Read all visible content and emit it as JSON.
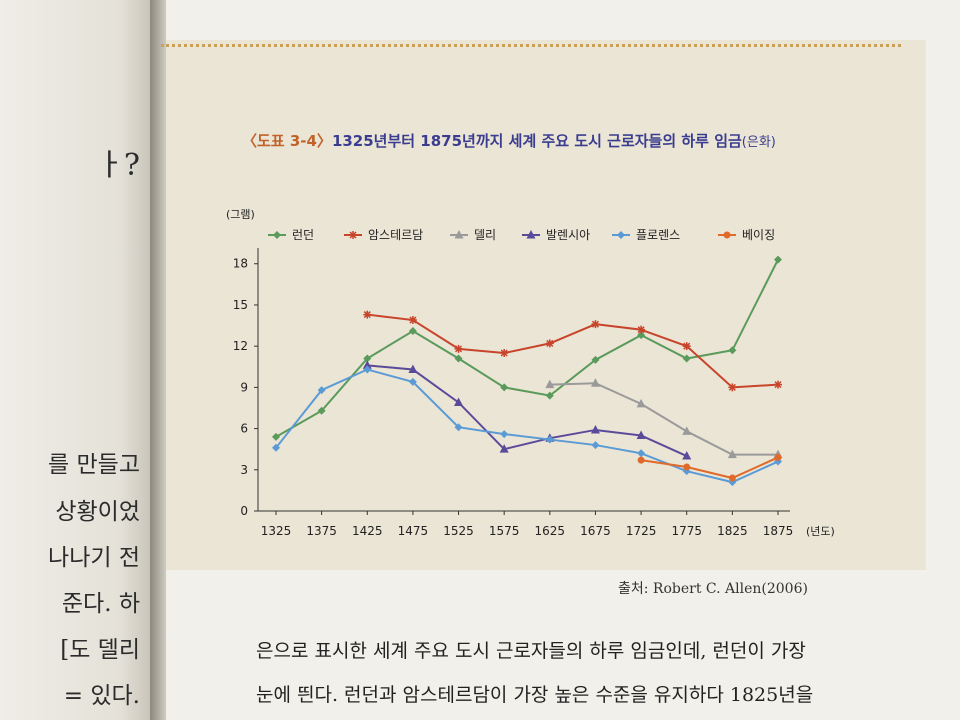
{
  "left_page": {
    "fragments": [
      "ㅏ?",
      "를 만들고",
      "상황이었",
      "나나기 전",
      "준다. 하",
      "[도 델리",
      "= 있다."
    ]
  },
  "figure": {
    "label": "〈도표 3-4〉",
    "title": "1325년부터 1875년까지 세계 주요 도시 근로자들의 하루 임금",
    "title_suffix": "(은화)",
    "source": "출처: Robert C. Allen(2006)"
  },
  "body_text": [
    "은으로 표시한 세계 주요 도시 근로자들의 하루 임금인데, 런던이 가장",
    "눈에 띈다. 런던과 암스테르담이 가장 높은 수준을 유지하다 1825년을"
  ],
  "chart_data": {
    "type": "line",
    "ylabel": "(그램)",
    "xlabel": "(년도)",
    "x": [
      1325,
      1375,
      1425,
      1475,
      1525,
      1575,
      1625,
      1675,
      1725,
      1775,
      1825,
      1875
    ],
    "x_tick_labels": [
      "1325",
      "1375",
      "1425",
      "1475",
      "1525",
      "1575",
      "1625",
      "1675",
      "1725",
      "1775",
      "1825",
      "1875"
    ],
    "y_ticks": [
      0,
      3,
      6,
      9,
      12,
      15,
      18
    ],
    "ylim": [
      0,
      19
    ],
    "legend_position": "top",
    "series": [
      {
        "name": "런던",
        "color": "#5a9a5a",
        "marker": "diamond",
        "x": [
          1325,
          1375,
          1425,
          1475,
          1525,
          1575,
          1625,
          1675,
          1725,
          1775,
          1825,
          1875
        ],
        "values": [
          5.4,
          7.3,
          11.1,
          13.1,
          11.1,
          9.0,
          8.4,
          11.0,
          12.8,
          11.1,
          11.7,
          18.3
        ]
      },
      {
        "name": "암스테르담",
        "color": "#c8442a",
        "marker": "cross",
        "x": [
          1425,
          1475,
          1525,
          1575,
          1625,
          1675,
          1725,
          1775,
          1825,
          1875
        ],
        "values": [
          14.3,
          13.9,
          11.8,
          11.5,
          12.2,
          13.6,
          13.2,
          12.0,
          9.0,
          9.2
        ]
      },
      {
        "name": "델리",
        "color": "#9a9a9a",
        "marker": "triangle",
        "x": [
          1625,
          1675,
          1725,
          1775,
          1825,
          1875
        ],
        "values": [
          9.2,
          9.3,
          7.8,
          5.8,
          4.1,
          4.1
        ]
      },
      {
        "name": "발렌시아",
        "color": "#5a4a9a",
        "marker": "triangle",
        "x": [
          1425,
          1475,
          1525,
          1575,
          1625,
          1675,
          1725,
          1775
        ],
        "values": [
          10.6,
          10.3,
          7.9,
          4.5,
          5.3,
          5.9,
          5.5,
          4.0
        ]
      },
      {
        "name": "플로렌스",
        "color": "#5b9bd5",
        "marker": "diamond",
        "x": [
          1325,
          1375,
          1425,
          1475,
          1525,
          1575,
          1625,
          1675,
          1725,
          1775,
          1825,
          1875
        ],
        "values": [
          4.6,
          8.8,
          10.3,
          9.4,
          6.1,
          5.6,
          5.2,
          4.8,
          4.2,
          2.9,
          2.1,
          3.6
        ]
      },
      {
        "name": "베이징",
        "color": "#e06a2a",
        "marker": "circle",
        "x": [
          1725,
          1775,
          1825,
          1875
        ],
        "values": [
          3.7,
          3.2,
          2.4,
          3.9
        ]
      }
    ]
  }
}
